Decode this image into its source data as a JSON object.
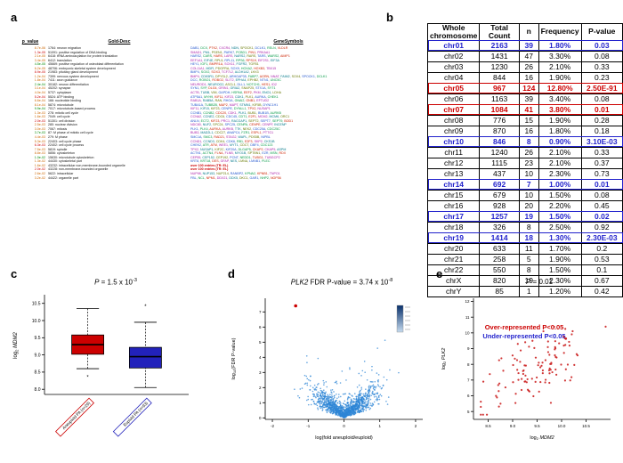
{
  "labels": {
    "a": "a",
    "b": "b",
    "c": "c",
    "d": "d",
    "e": "e"
  },
  "panel_a": {
    "headers": [
      "p_value",
      "Gold-Desc",
      "GeneSymbols"
    ],
    "gene_palette": [
      "#2255cc",
      "#009944",
      "#cc2200",
      "#aa22aa",
      "#007788",
      "#667700"
    ],
    "rows": [
      {
        "p": "8.7e-06",
        "pc": "#cc6600",
        "desc": "1764: neuron migration",
        "genes": "DAB1, DCX, PTK2, CXCR4, NDN, SPOCK1, DCLK1, RELN, VLDLR"
      },
      {
        "p": "1.3e-05",
        "pc": "#cc0000",
        "desc": "51091: positive regulation of DNA binding",
        "genes": "SMAD1, PML, PSEN1, PARK7, PCBD1, PIN1, PRKAA1"
      },
      {
        "p": "2.1e-05",
        "pc": "#cc6600",
        "desc": "6418: tRNA aminoacylation for protein translation",
        "genes": "HARS2, CARS, HARS, LARS, NARS2, RARS, TARS, WARS2, AIMP1"
      },
      {
        "p": "3.4e-05",
        "pc": "#cc6600",
        "desc": "6412: translation",
        "genes": "EEF1A1, EIF4E, RPL5, RPL11, RPS6, RPS19, EIF2S1, EIF3A"
      },
      {
        "p": "4.5e-05",
        "pc": "#008800",
        "desc": "45669: positive regulation of osteoblast differentiation",
        "genes": "HEY1, IGF1, BMPR1A, SOX11, FGFR2, TGFB1"
      },
      {
        "p": "6.2e-05",
        "pc": "#cc6600",
        "desc": "48706: embryonic skeletal system development",
        "genes": "COL11A1, MDFI, PDGFRA, SOX9, HOXA2, HOXB3, TBX15"
      },
      {
        "p": "8.9e-05",
        "pc": "#cc0000",
        "desc": "21983: pituitary gland development",
        "genes": "BMP4, SOX2, SOX3, TCF7L2, ALDH1A2, LHX3"
      },
      {
        "p": "1.2e-04",
        "pc": "#cc6600",
        "desc": "7399: nervous system development",
        "genes": "BMP4, CDK5R1, DPYSL2, ARHGAP35, FABP7, AGRN, NNAT, FAIM2, SOX4, SPOCK1, DCLK1"
      },
      {
        "p": "1.8e-04",
        "pc": "#cc6600",
        "desc": "7411: axon guidance",
        "genes": "DCC, ROBO1, ROBO2, SLIT2, EPHA4, EPHB2, NTN1, UNC5C"
      },
      {
        "p": "2.4e-04",
        "pc": "#008800",
        "desc": "30182: neuron differentiation",
        "genes": "NEUROD1, NEUROG2, ASCL1, DLL1, NOTCH1, HES1, ID2"
      },
      {
        "p": "3.1e-04",
        "pc": "#cc6600",
        "desc": "45202: synapse",
        "genes": "SYN1, SYP, DLG4, GRIN1, GRIA2, SNAP25, STX1A, SYT1"
      },
      {
        "p": "4.0e-04",
        "pc": "#cc6600",
        "desc": "5737: cytoplasm",
        "genes": "ACTB, TUBB, VIM, GAPDH, HSPA8, EEF2, PKM, ENO1, LDHA"
      },
      {
        "p": "5.2e-04",
        "pc": "#cc0000",
        "desc": "5524: ATP binding",
        "genes": "ATP5A1, MYH9, KIF11, KIF23, CDK1, PLK1, AURKA, CHEK1"
      },
      {
        "p": "6.6e-04",
        "pc": "#cc6600",
        "desc": "166: nucleotide binding",
        "genes": "RAB1A, RAB5A, RAN, RHOA, GNAI2, GNB1, EFTUD2"
      },
      {
        "p": "8.1e-04",
        "pc": "#cc6600",
        "desc": "5874: microtubule",
        "genes": "TUBA1A, TUBB2B, MAP2, MAPT, STMN1, KIF5B, DYNC1H1"
      },
      {
        "p": "9.9e-04",
        "pc": "#008800",
        "desc": "7017: microtubule-based process",
        "genes": "KIF11, KIF15, KIF23, CENPE, DYNLL1, TPX2, NUSAP1"
      },
      {
        "p": "1.3e-03",
        "pc": "#cc6600",
        "desc": "278: mitotic cell cycle",
        "genes": "CCNB1, CCNB2, CDC20, CDK1, PLK1, BUB1, BUB1B, AURKB"
      },
      {
        "p": "1.6e-03",
        "pc": "#cc6600",
        "desc": "7049: cell cycle",
        "genes": "CCNA2, CCNE2, CDC6, CDC45, CDT1, E2F1, MCM2, MCM6, ORC1"
      },
      {
        "p": "2.0e-03",
        "pc": "#cc0000",
        "desc": "51301: cell division",
        "genes": "ANLN, ECT2, KIF23, PRC1, RACGAP1, SEPT2, SEPT7, SEPT9, BOD1"
      },
      {
        "p": "2.5e-03",
        "pc": "#cc6600",
        "desc": "280: nuclear division",
        "genes": "NDC80, NUF2, SPC24, SPC25, CENPA, CENPE, CENPF, INCENP"
      },
      {
        "p": "3.0e-03",
        "pc": "#cc6600",
        "desc": "7067: mitosis",
        "genes": "PLK1, PLK4, AURKA, AURKB, TTK, NEK2, CDC25A, CDC25C"
      },
      {
        "p": "3.7e-03",
        "pc": "#008800",
        "desc": "87: M phase of mitotic cell cycle",
        "genes": "BUB3, MAD2L1, CDC27, ANAPC4, FZR1, ESPL1, PTTG1"
      },
      {
        "p": "4.4e-03",
        "pc": "#cc6600",
        "desc": "279: M phase",
        "genes": "SMC1A, SMC3, RAD21, STAG2, WAPL, PDS5B, NIPBL"
      },
      {
        "p": "5.3e-03",
        "pc": "#cc6600",
        "desc": "22403: cell cycle phase",
        "genes": "CCND1, CCND3, CDK4, CDK6, RB1, E2F3, SKP2, CKS1B"
      },
      {
        "p": "6.3e-03",
        "pc": "#cc0000",
        "desc": "22402: cell cycle process",
        "genes": "CHEK2, ATR, ATM, WEE1, MYT1, CDC7, DBF4, CDC123"
      },
      {
        "p": "7.5e-03",
        "pc": "#cc6600",
        "desc": "5819: spindle",
        "genes": "TPX2, NUSAP1, KIF2C, KIF20A, DLGAP5, CKAP2, CKAP5, ASPM"
      },
      {
        "p": "8.8e-03",
        "pc": "#cc6600",
        "desc": "5856: cytoskeleton",
        "genes": "ACTN1, ACTN4, FLNA, FLNB, MYO1B, SPTBN1, EZR, MSN, RDX"
      },
      {
        "p": "1.0e-02",
        "pc": "#008800",
        "desc": "15630: microtubule cytoskeleton",
        "genes": "CEP55, CEP152, CEP192, PCNT, NEDD1, TUBG1, TUBGCP2"
      },
      {
        "p": "1.3e-02",
        "pc": "#cc6600",
        "desc": "44430: cytoskeletal part",
        "genes": "KRT8, KRT18, DES, GFAP, NES, LMNA, LMNB1, PLEC"
      },
      {
        "p": "1.6e-02",
        "pc": "#cc6600",
        "desc": "43232: intracellular non-membrane-bounded organelle",
        "genes": "over 100 entries (TR: EL)",
        "note": true
      },
      {
        "p": "2.0e-02",
        "pc": "#cc0000",
        "desc": "43228: non-membrane-bounded organelle",
        "genes": "over 100 entries (TR: EL)",
        "note": true
      },
      {
        "p": "2.6e-02",
        "pc": "#cc6600",
        "desc": "5622: intracellular",
        "genes": "NUP98, NUP153, NUP214, RANBP2, KPNA2, KPNB1, TNPO1"
      },
      {
        "p": "3.2e-02",
        "pc": "#cc6600",
        "desc": "44422: organelle part",
        "genes": "FBL, NCL, NPM1, DDX21, DDX5, DKC1, GAR1, NHP2, NOP56"
      }
    ]
  },
  "panel_b": {
    "headers": [
      "Whole chromosome",
      "Total Count",
      "n",
      "Frequency",
      "P-value"
    ],
    "rows": [
      {
        "chr": "chr01",
        "total": "2163",
        "n": "39",
        "freq": "1.80%",
        "p": "0.03",
        "hl": "under"
      },
      {
        "chr": "chr02",
        "total": "1431",
        "n": "47",
        "freq": "3.30%",
        "p": "0.08",
        "hl": ""
      },
      {
        "chr": "chr03",
        "total": "1230",
        "n": "26",
        "freq": "2.10%",
        "p": "0.33",
        "hl": ""
      },
      {
        "chr": "chr04",
        "total": "844",
        "n": "16",
        "freq": "1.90%",
        "p": "0.23",
        "hl": ""
      },
      {
        "chr": "chr05",
        "total": "967",
        "n": "124",
        "freq": "12.80%",
        "p": "2.50E-91",
        "hl": "over"
      },
      {
        "chr": "chr06",
        "total": "1163",
        "n": "39",
        "freq": "3.40%",
        "p": "0.08",
        "hl": ""
      },
      {
        "chr": "chr07",
        "total": "1084",
        "n": "41",
        "freq": "3.80%",
        "p": "0.01",
        "hl": "over"
      },
      {
        "chr": "chr08",
        "total": "776",
        "n": "15",
        "freq": "1.90%",
        "p": "0.28",
        "hl": ""
      },
      {
        "chr": "chr09",
        "total": "870",
        "n": "16",
        "freq": "1.80%",
        "p": "0.18",
        "hl": ""
      },
      {
        "chr": "chr10",
        "total": "846",
        "n": "8",
        "freq": "0.90%",
        "p": "3.10E-03",
        "hl": "under"
      },
      {
        "chr": "chr11",
        "total": "1240",
        "n": "26",
        "freq": "2.10%",
        "p": "0.33",
        "hl": ""
      },
      {
        "chr": "chr12",
        "total": "1115",
        "n": "23",
        "freq": "2.10%",
        "p": "0.37",
        "hl": ""
      },
      {
        "chr": "chr13",
        "total": "437",
        "n": "10",
        "freq": "2.30%",
        "p": "0.73",
        "hl": ""
      },
      {
        "chr": "chr14",
        "total": "692",
        "n": "7",
        "freq": "1.00%",
        "p": "0.01",
        "hl": "under"
      },
      {
        "chr": "chr15",
        "total": "679",
        "n": "10",
        "freq": "1.50%",
        "p": "0.08",
        "hl": ""
      },
      {
        "chr": "chr16",
        "total": "928",
        "n": "20",
        "freq": "2.20%",
        "p": "0.45",
        "hl": ""
      },
      {
        "chr": "chr17",
        "total": "1257",
        "n": "19",
        "freq": "1.50%",
        "p": "0.02",
        "hl": "under"
      },
      {
        "chr": "chr18",
        "total": "326",
        "n": "8",
        "freq": "2.50%",
        "p": "0.92",
        "hl": ""
      },
      {
        "chr": "chr19",
        "total": "1414",
        "n": "18",
        "freq": "1.30%",
        "p": "2.30E-03",
        "hl": "under"
      },
      {
        "chr": "chr20",
        "total": "633",
        "n": "11",
        "freq": "1.70%",
        "p": "0.2",
        "hl": ""
      },
      {
        "chr": "chr21",
        "total": "258",
        "n": "5",
        "freq": "1.90%",
        "p": "0.53",
        "hl": ""
      },
      {
        "chr": "chr22",
        "total": "550",
        "n": "8",
        "freq": "1.50%",
        "p": "0.1",
        "hl": ""
      },
      {
        "chr": "chrX",
        "total": "820",
        "n": "19",
        "freq": "2.30%",
        "p": "0.67",
        "hl": ""
      },
      {
        "chr": "chrY",
        "total": "85",
        "n": "1",
        "freq": "1.20%",
        "p": "0.42",
        "hl": ""
      }
    ],
    "legend": [
      {
        "text": "Over-represented P<0.05",
        "color": "#cc0000"
      },
      {
        "text": "Under-represented P<0.05",
        "color": "#2222cc"
      }
    ]
  },
  "panel_c": {
    "title": {
      "p": "P",
      "eq": " = 1.5 x 10",
      "exp": "-3"
    },
    "chart_data": {
      "type": "box",
      "ylabel_prefix": "log",
      "ylabel_sub": "2",
      "ylabel_gene": "MDM2",
      "ylim": [
        7.85,
        10.7
      ],
      "yticks": [
        8,
        8.5,
        9,
        9.5,
        10,
        10.5
      ],
      "groups": [
        {
          "label": "Aneuploid PA (n=29)",
          "color": "#cc0000",
          "lo": 8.6,
          "q1": 9.02,
          "median": 9.3,
          "q3": 9.58,
          "hi": 10.35,
          "outliers": [
            8.35
          ]
        },
        {
          "label": "Euploid PA (n=93)",
          "color": "#2222bb",
          "lo": 8.05,
          "q1": 8.62,
          "median": 8.95,
          "q3": 9.22,
          "hi": 9.95,
          "outliers": [
            10.42
          ]
        }
      ]
    }
  },
  "panel_d": {
    "title": {
      "gene": "PLK2",
      "rest": " FDR P-value = 3.74 x 10",
      "exp": "-8"
    },
    "chart_data": {
      "type": "scatter",
      "xlabel": "log(fold aneuploid/euploid)",
      "ylabel_prefix": "log",
      "ylabel_sub": "10",
      "ylabel_rest": "(FDR P-value)",
      "xlim": [
        -2.2,
        2.2
      ],
      "ylim": [
        -0.1,
        7.9
      ],
      "xticks": [
        -2,
        -1,
        0,
        1,
        2
      ],
      "yticks": [
        0,
        1,
        2,
        3,
        4,
        5,
        6,
        7
      ],
      "n_points": 1400,
      "seed": 42,
      "point_color": "#2e86d6",
      "highlight": {
        "x": -1.35,
        "y": 7.4,
        "color": "#cc0000",
        "label": "PLK2"
      }
    }
  },
  "panel_e": {
    "title": {
      "p": "P",
      "eq": " = 0.01"
    },
    "chart_data": {
      "type": "scatter",
      "xlabel_prefix": "log",
      "xlabel_sub": "2",
      "xlabel_gene": "MDM2",
      "ylabel_prefix": "log",
      "ylabel_sub": "2",
      "ylabel_gene": "PLK2",
      "xlim": [
        8.2,
        11.0
      ],
      "ylim": [
        4.5,
        12.2
      ],
      "xticks": [
        8.5,
        9,
        9.5,
        10,
        10.5
      ],
      "yticks": [
        5,
        6,
        7,
        8,
        9,
        10,
        11,
        12
      ],
      "n_points": 115,
      "seed": 9,
      "point_color": "#cc2222"
    }
  }
}
